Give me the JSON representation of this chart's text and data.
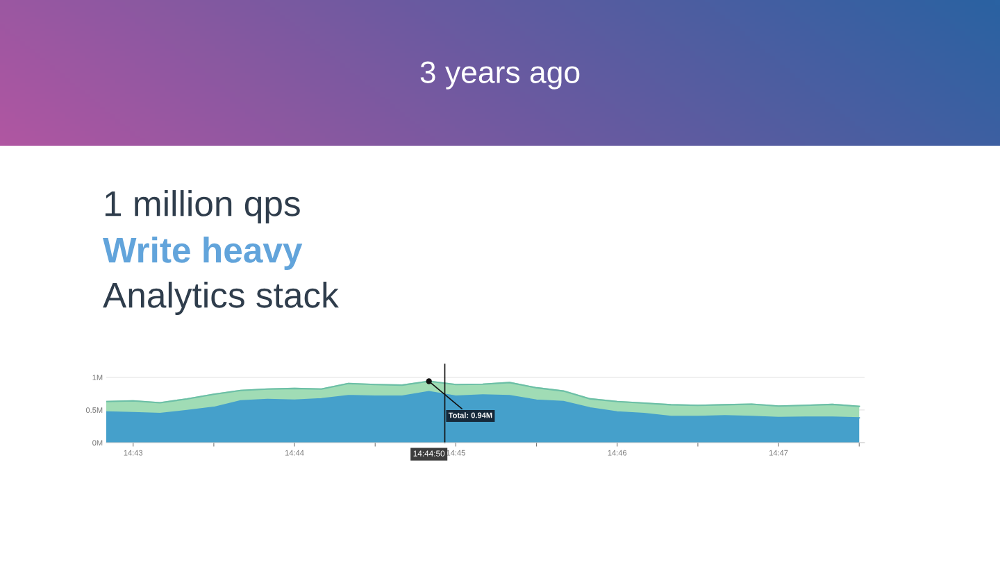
{
  "chart_data": {
    "type": "area",
    "stacked": true,
    "title": "3 years ago",
    "subtitle": "1 million qps",
    "annotations": [
      "Write heavy",
      "Analytics stack",
      {
        "text": "Total: 0.94M",
        "x": 14.747222,
        "y": 0.94
      },
      {
        "text": "14:44:50",
        "x": 14.747222,
        "y": 0
      }
    ],
    "x": [
      14.713889,
      14.716667,
      14.719444,
      14.722222,
      14.725,
      14.727778,
      14.730556,
      14.733333,
      14.736111,
      14.738889,
      14.741667,
      14.744444,
      14.747222,
      14.75,
      14.752778,
      14.755556,
      14.758333,
      14.761111,
      14.763889,
      14.766667,
      14.769444,
      14.772222,
      14.775,
      14.777778,
      14.780556,
      14.783333,
      14.786111,
      14.788889,
      14.791667
    ],
    "series": [
      {
        "color": "#45a0cb",
        "values": [
          0.47,
          0.46,
          0.445,
          0.49,
          0.54,
          0.64,
          0.66,
          0.65,
          0.67,
          0.72,
          0.71,
          0.71,
          0.78,
          0.71,
          0.73,
          0.72,
          0.65,
          0.63,
          0.53,
          0.47,
          0.445,
          0.4,
          0.4,
          0.41,
          0.4,
          0.385,
          0.39,
          0.39,
          0.38
        ]
      },
      {
        "color": "#a0dcb5",
        "values": [
          0.16,
          0.18,
          0.165,
          0.18,
          0.2,
          0.16,
          0.16,
          0.18,
          0.15,
          0.185,
          0.18,
          0.17,
          0.16,
          0.18,
          0.165,
          0.2,
          0.19,
          0.16,
          0.14,
          0.16,
          0.16,
          0.18,
          0.17,
          0.17,
          0.19,
          0.175,
          0.18,
          0.195,
          0.175
        ]
      }
    ],
    "xlim": [
      14.713889,
      14.792222
    ],
    "ylim": [
      0,
      1.2
    ],
    "xticks": [
      {
        "value": 14.716667,
        "label": "14:43"
      },
      {
        "value": 14.725,
        "label": null
      },
      {
        "value": 14.733333,
        "label": "14:44"
      },
      {
        "value": 14.741667,
        "label": null
      },
      {
        "value": 14.75,
        "label": "14:45"
      },
      {
        "value": 14.758333,
        "label": null
      },
      {
        "value": 14.766667,
        "label": "14:46"
      },
      {
        "value": 14.775,
        "label": null
      },
      {
        "value": 14.783333,
        "label": "14:47"
      },
      {
        "value": 14.791667,
        "label": null
      }
    ],
    "yticks": [
      {
        "value": 0,
        "label": "0M"
      },
      {
        "value": 0.5,
        "label": "0.5M"
      },
      {
        "value": 1,
        "label": "1M"
      }
    ],
    "ref_lines": [
      {
        "axis": "x",
        "value": 14.74886,
        "color": "#111111"
      }
    ],
    "grid": "y"
  }
}
